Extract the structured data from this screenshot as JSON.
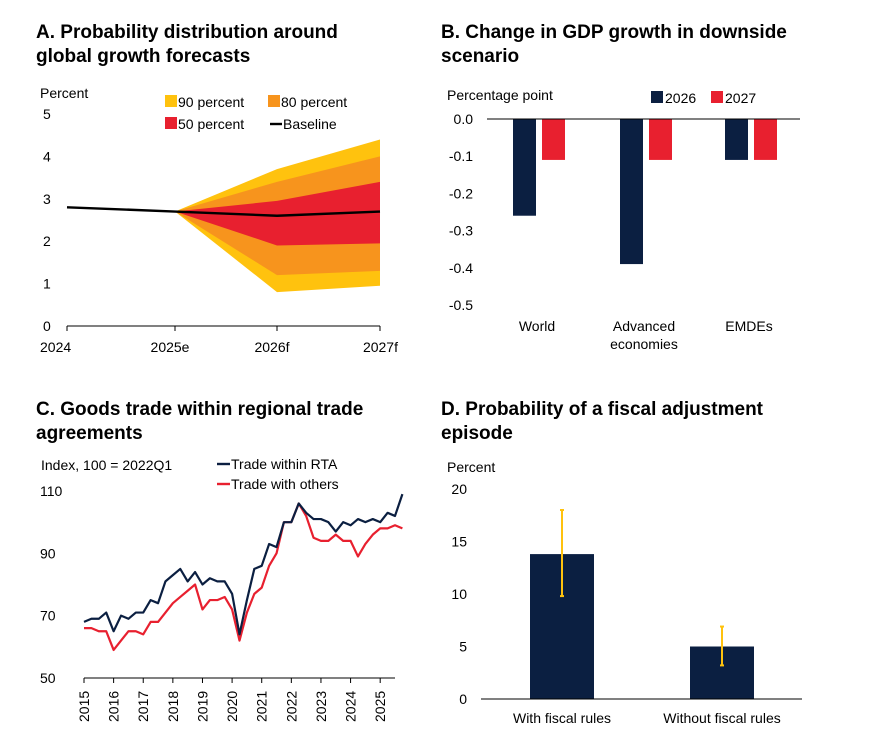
{
  "panels": {
    "a": {
      "title": "A. Probability distribution around global growth forecasts"
    },
    "b": {
      "title": "B. Change in GDP growth in downside scenario"
    },
    "c": {
      "title": "C. Goods trade within regional trade agreements"
    },
    "d": {
      "title": "D. Probability of a fiscal adjustment episode"
    }
  },
  "chart_data": [
    {
      "id": "a",
      "type": "area",
      "title": "A. Probability distribution around global growth forecasts",
      "ylabel": "Percent",
      "ylim": [
        0,
        5
      ],
      "yticks": [
        "0",
        "1",
        "2",
        "3",
        "4",
        "5"
      ],
      "x": [
        "2024",
        "2025e",
        "2026f",
        "2027f"
      ],
      "baseline": {
        "name": "Baseline",
        "values": [
          2.8,
          2.7,
          2.6,
          2.7
        ]
      },
      "bands": [
        {
          "name": "90 percent",
          "color": "#FFC20E",
          "lower": [
            null,
            2.7,
            0.8,
            0.95
          ],
          "upper": [
            null,
            2.7,
            3.7,
            4.4
          ]
        },
        {
          "name": "80 percent",
          "color": "#F7941D",
          "lower": [
            null,
            2.7,
            1.2,
            1.3
          ],
          "upper": [
            null,
            2.7,
            3.4,
            4.0
          ]
        },
        {
          "name": "50 percent",
          "color": "#E8202F",
          "lower": [
            null,
            2.7,
            1.9,
            1.95
          ],
          "upper": [
            null,
            2.7,
            2.95,
            3.4
          ]
        }
      ],
      "legend": [
        "90 percent",
        "80 percent",
        "50 percent",
        "Baseline"
      ]
    },
    {
      "id": "b",
      "type": "bar",
      "title": "B. Change in GDP growth in downside scenario",
      "ylabel": "Percentage point",
      "ylim": [
        -0.5,
        0.0
      ],
      "yticks": [
        "0.0",
        "-0.1",
        "-0.2",
        "-0.3",
        "-0.4",
        "-0.5"
      ],
      "categories": [
        "World",
        "Advanced economies",
        "EMDEs"
      ],
      "category_lines": [
        [
          "World"
        ],
        [
          "Advanced",
          "economies"
        ],
        [
          "EMDEs"
        ]
      ],
      "series": [
        {
          "name": "2026",
          "color": "#0B1F41",
          "values": [
            -0.26,
            -0.39,
            -0.11
          ]
        },
        {
          "name": "2027",
          "color": "#E8202F",
          "values": [
            -0.11,
            -0.11,
            -0.11
          ]
        }
      ]
    },
    {
      "id": "c",
      "type": "line",
      "title": "C. Goods trade within regional trade agreements",
      "ylabel": "Index, 100 = 2022Q1",
      "ylim": [
        50,
        110
      ],
      "yticks": [
        "50",
        "70",
        "90",
        "110"
      ],
      "x_range": [
        2015,
        2025.5
      ],
      "xticks": [
        "2015",
        "2016",
        "2017",
        "2018",
        "2019",
        "2020",
        "2021",
        "2022",
        "2023",
        "2024",
        "2025"
      ],
      "series": [
        {
          "name": "Trade within RTA",
          "color": "#0B1F41",
          "values": [
            68,
            69,
            69,
            71,
            65,
            70,
            69,
            71,
            71,
            75,
            74,
            81,
            83,
            85,
            81,
            84,
            80,
            82,
            81,
            81,
            77,
            64,
            75,
            85,
            86,
            93,
            92,
            100,
            100,
            106,
            103,
            101,
            101,
            100,
            97,
            100,
            99,
            101,
            100,
            101,
            100,
            103,
            102,
            109
          ]
        },
        {
          "name": "Trade with others",
          "color": "#E8202F",
          "values": [
            66,
            66,
            65,
            65,
            59,
            62,
            65,
            65,
            64,
            68,
            68,
            71,
            74,
            76,
            78,
            80,
            72,
            75,
            75,
            76,
            72,
            62,
            71,
            77,
            79,
            86,
            90,
            100,
            100,
            106,
            102,
            95,
            94,
            94,
            96,
            94,
            94,
            89,
            93,
            96,
            98,
            98,
            99,
            98
          ]
        }
      ]
    },
    {
      "id": "d",
      "type": "bar",
      "title": "D. Probability of a fiscal adjustment episode",
      "ylabel": "Percent",
      "ylim": [
        0,
        20
      ],
      "yticks": [
        "0",
        "5",
        "10",
        "15",
        "20"
      ],
      "categories": [
        "With fiscal rules",
        "Without fiscal rules"
      ],
      "bar_color": "#0B1F41",
      "error_color": "#FFC20E",
      "values": [
        13.8,
        5.0
      ],
      "error_low": [
        9.8,
        3.2
      ],
      "error_high": [
        18.0,
        6.9
      ]
    }
  ]
}
